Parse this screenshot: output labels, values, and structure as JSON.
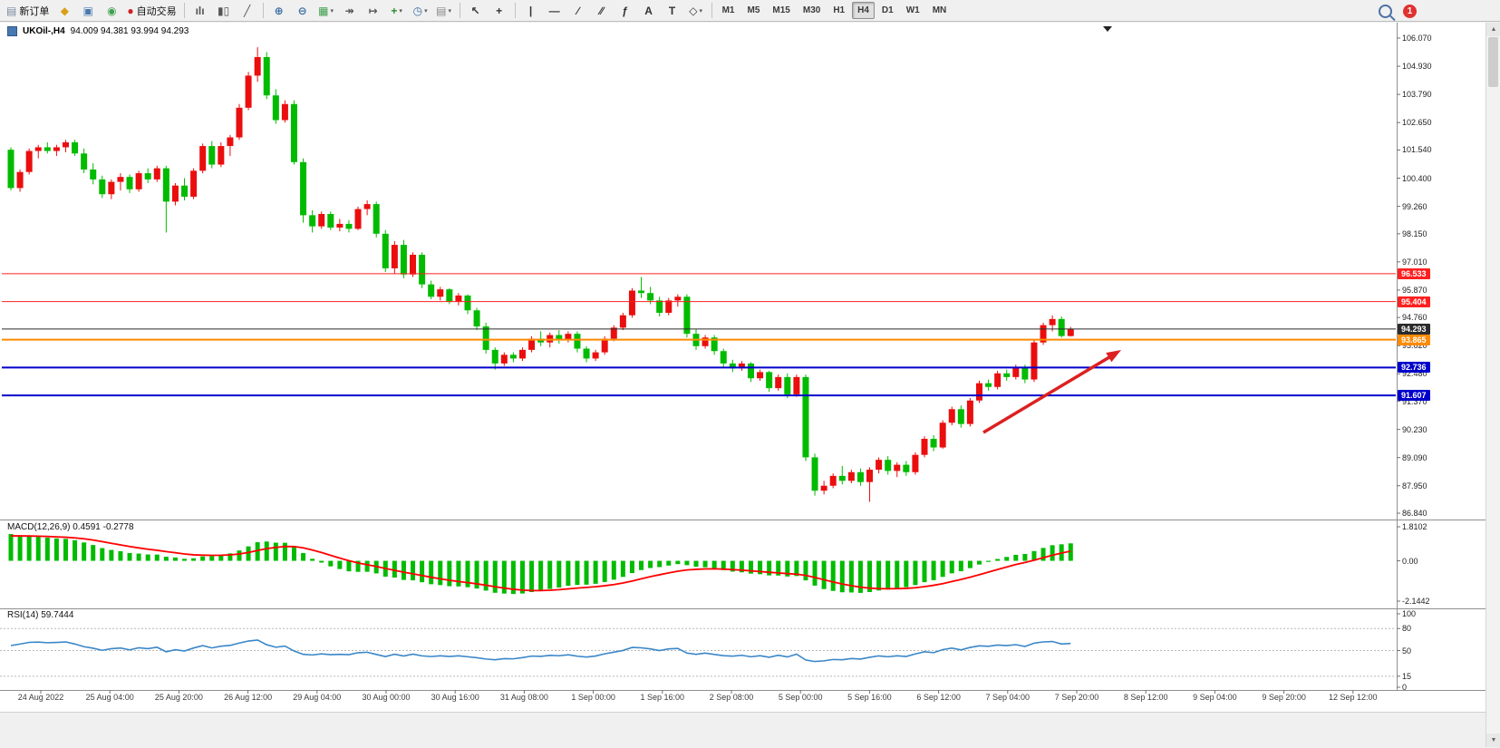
{
  "toolbar": {
    "items": [
      {
        "type": "button",
        "name": "new-order-button",
        "glyph": "▤",
        "glyph_color": "#7a8aa0",
        "label": "新订单"
      },
      {
        "type": "icon",
        "name": "market-watch-icon",
        "glyph": "◆",
        "glyph_color": "#d8a018"
      },
      {
        "type": "icon",
        "name": "navigator-icon",
        "glyph": "▣",
        "glyph_color": "#4878b0"
      },
      {
        "type": "icon",
        "name": "terminal-icon",
        "glyph": "◉",
        "glyph_color": "#3f9f4f"
      },
      {
        "type": "button",
        "name": "auto-trading-button",
        "glyph": "●",
        "glyph_color": "#cc2222",
        "label": "自动交易"
      },
      {
        "type": "sep"
      },
      {
        "type": "icon",
        "name": "bar-chart-icon",
        "glyph": "ılı",
        "glyph_color": "#555555"
      },
      {
        "type": "icon",
        "name": "candlestick-chart-icon",
        "glyph": "▮▯",
        "glyph_color": "#555555"
      },
      {
        "type": "icon",
        "name": "line-chart-icon",
        "glyph": "╱",
        "glyph_color": "#555555"
      },
      {
        "type": "sep"
      },
      {
        "type": "icon",
        "name": "zoom-in-icon",
        "glyph": "⊕",
        "glyph_color": "#3a6ea5"
      },
      {
        "type": "icon",
        "name": "zoom-out-icon",
        "glyph": "⊖",
        "glyph_color": "#3a6ea5"
      },
      {
        "type": "icon",
        "name": "new-chart-icon",
        "glyph": "▦",
        "glyph_color": "#3f9f4f",
        "caret": true
      },
      {
        "type": "icon",
        "name": "auto-scroll-icon",
        "glyph": "↠",
        "glyph_color": "#555555"
      },
      {
        "type": "icon",
        "name": "chart-shift-icon",
        "glyph": "↦",
        "glyph_color": "#555555"
      },
      {
        "type": "icon",
        "name": "indicators-icon",
        "glyph": "+",
        "glyph_color": "#2e8b2e",
        "caret": true
      },
      {
        "type": "icon",
        "name": "periods-icon",
        "glyph": "◷",
        "glyph_color": "#3a6ea5",
        "caret": true
      },
      {
        "type": "icon",
        "name": "templates-icon",
        "glyph": "▤",
        "glyph_color": "#888888",
        "caret": true
      },
      {
        "type": "sep"
      },
      {
        "type": "icon",
        "name": "cursor-icon",
        "glyph": "↖",
        "glyph_color": "#333333"
      },
      {
        "type": "icon",
        "name": "crosshair-icon",
        "glyph": "+",
        "glyph_color": "#333333"
      },
      {
        "type": "sep"
      },
      {
        "type": "icon",
        "name": "vertical-line-icon",
        "glyph": "|",
        "glyph_color": "#333333"
      },
      {
        "type": "icon",
        "name": "horizontal-line-icon",
        "glyph": "—",
        "glyph_color": "#333333"
      },
      {
        "type": "icon",
        "name": "trendline-icon",
        "glyph": "∕",
        "glyph_color": "#333333"
      },
      {
        "type": "icon",
        "name": "channel-icon",
        "glyph": "∕∕",
        "glyph_color": "#333333"
      },
      {
        "type": "icon",
        "name": "fibonacci-icon",
        "glyph": "ƒ",
        "glyph_color": "#333333"
      },
      {
        "type": "icon",
        "name": "text-icon",
        "glyph": "A",
        "glyph_color": "#333333"
      },
      {
        "type": "icon",
        "name": "text-label-icon",
        "glyph": "T",
        "glyph_color": "#333333"
      },
      {
        "type": "icon",
        "name": "arrow-tools-icon",
        "glyph": "◇",
        "glyph_color": "#333333",
        "caret": true
      },
      {
        "type": "sep"
      }
    ],
    "timeframes": [
      "M1",
      "M5",
      "M15",
      "M30",
      "H1",
      "H4",
      "D1",
      "W1",
      "MN"
    ],
    "active_timeframe": "H4",
    "notification_count": "1"
  },
  "chart": {
    "title_symbol": "UKOil-,H4",
    "title_ohlc": "94.009 94.381 93.994 94.293",
    "price_axis_labels": [
      "106.070",
      "104.930",
      "103.790",
      "102.650",
      "101.540",
      "100.400",
      "99.260",
      "98.150",
      "97.010",
      "95.870",
      "94.760",
      "93.620",
      "92.480",
      "91.370",
      "90.230",
      "89.090",
      "87.950",
      "86.840"
    ]
  },
  "indicators": {
    "macd": {
      "label": "MACD(12,26,9) 0.4591 -0.2778",
      "axis_labels": [
        "1.8102",
        "0.00",
        "-2.1442"
      ]
    },
    "rsi": {
      "label": "RSI(14) 59.7444",
      "axis_labels": [
        "100",
        "80",
        "50",
        "15",
        "0"
      ],
      "level_lines": [
        80,
        50,
        15
      ]
    }
  },
  "time_axis": [
    "24 Aug 2022",
    "25 Aug 04:00",
    "25 Aug 20:00",
    "26 Aug 12:00",
    "29 Aug 04:00",
    "30 Aug 00:00",
    "30 Aug 16:00",
    "31 Aug 08:00",
    "1 Sep 00:00",
    "1 Sep 16:00",
    "2 Sep 08:00",
    "5 Sep 00:00",
    "5 Sep 16:00",
    "6 Sep 12:00",
    "7 Sep 04:00",
    "7 Sep 20:00",
    "8 Sep 12:00",
    "9 Sep 04:00",
    "9 Sep 20:00",
    "12 Sep 12:00"
  ],
  "chart_data": {
    "type": "candlestick",
    "symbol": "UKOil-",
    "timeframe": "H4",
    "up_color": "#ea0e0e",
    "down_color": "#00bb00",
    "price_range": [
      86.84,
      106.07
    ],
    "macd_axis_range": [
      -2.1442,
      1.8102
    ],
    "rsi_axis_range": [
      0,
      100
    ],
    "horizontal_lines": [
      {
        "label": "96.533",
        "price": 96.533,
        "color": "#ff2020",
        "width": 1
      },
      {
        "label": "95.404",
        "price": 95.404,
        "color": "#ff2020",
        "width": 1
      },
      {
        "label": "94.293",
        "price": 94.293,
        "color": "#2b2b2b",
        "width": 1
      },
      {
        "label": "93.865",
        "price": 93.865,
        "color": "#ff8a00",
        "width": 2
      },
      {
        "label": "92.736",
        "price": 92.736,
        "color": "#0000cc",
        "width": 2
      },
      {
        "label": "91.607",
        "price": 91.607,
        "color": "#0000cc",
        "width": 2
      }
    ],
    "annotation_arrow": {
      "direction": "up-right",
      "color": "#dd2020"
    },
    "candles_ohlc": [
      [
        101.55,
        101.65,
        99.9,
        100.0
      ],
      [
        100.0,
        100.75,
        99.85,
        100.65
      ],
      [
        100.65,
        101.6,
        100.55,
        101.5
      ],
      [
        101.5,
        101.75,
        101.2,
        101.65
      ],
      [
        101.65,
        101.85,
        101.4,
        101.5
      ],
      [
        101.5,
        101.75,
        101.3,
        101.65
      ],
      [
        101.65,
        101.95,
        101.45,
        101.85
      ],
      [
        101.85,
        101.95,
        101.3,
        101.4
      ],
      [
        101.4,
        101.6,
        100.6,
        100.75
      ],
      [
        100.75,
        101.0,
        100.15,
        100.35
      ],
      [
        100.35,
        100.5,
        99.6,
        99.75
      ],
      [
        99.75,
        100.35,
        99.55,
        100.25
      ],
      [
        100.25,
        100.6,
        99.9,
        100.45
      ],
      [
        100.45,
        100.55,
        99.8,
        99.95
      ],
      [
        99.95,
        100.7,
        99.85,
        100.6
      ],
      [
        100.6,
        100.8,
        100.2,
        100.35
      ],
      [
        100.35,
        100.9,
        100.25,
        100.8
      ],
      [
        100.8,
        100.9,
        98.2,
        99.45
      ],
      [
        99.45,
        100.2,
        99.3,
        100.1
      ],
      [
        100.1,
        100.4,
        99.5,
        99.65
      ],
      [
        99.65,
        100.8,
        99.55,
        100.7
      ],
      [
        100.7,
        101.8,
        100.6,
        101.7
      ],
      [
        101.7,
        101.9,
        100.8,
        100.95
      ],
      [
        100.95,
        101.85,
        100.85,
        101.7
      ],
      [
        101.7,
        102.15,
        101.3,
        102.05
      ],
      [
        102.05,
        103.4,
        101.95,
        103.25
      ],
      [
        103.25,
        104.7,
        103.15,
        104.55
      ],
      [
        104.55,
        105.7,
        104.3,
        105.3
      ],
      [
        105.3,
        105.5,
        103.6,
        103.75
      ],
      [
        103.75,
        104.0,
        102.6,
        102.75
      ],
      [
        102.75,
        103.55,
        102.65,
        103.4
      ],
      [
        103.4,
        103.55,
        100.95,
        101.05
      ],
      [
        101.05,
        101.2,
        98.6,
        98.9
      ],
      [
        98.9,
        99.1,
        98.2,
        98.45
      ],
      [
        98.45,
        99.05,
        98.35,
        98.95
      ],
      [
        98.95,
        99.05,
        98.3,
        98.4
      ],
      [
        98.4,
        98.75,
        98.25,
        98.55
      ],
      [
        98.55,
        98.7,
        98.2,
        98.35
      ],
      [
        98.35,
        99.25,
        98.3,
        99.15
      ],
      [
        99.15,
        99.5,
        98.9,
        99.35
      ],
      [
        99.35,
        99.45,
        98.0,
        98.15
      ],
      [
        98.15,
        98.3,
        96.6,
        96.75
      ],
      [
        96.75,
        97.85,
        96.55,
        97.7
      ],
      [
        97.7,
        97.9,
        96.35,
        96.5
      ],
      [
        96.5,
        97.4,
        96.4,
        97.3
      ],
      [
        97.3,
        97.4,
        95.95,
        96.1
      ],
      [
        96.1,
        96.25,
        95.5,
        95.6
      ],
      [
        95.6,
        96.0,
        95.45,
        95.9
      ],
      [
        95.9,
        95.95,
        95.3,
        95.4
      ],
      [
        95.4,
        95.75,
        95.25,
        95.65
      ],
      [
        95.65,
        95.7,
        94.9,
        95.05
      ],
      [
        95.05,
        95.15,
        94.25,
        94.4
      ],
      [
        94.4,
        94.55,
        93.3,
        93.45
      ],
      [
        93.45,
        93.55,
        92.65,
        92.9
      ],
      [
        92.9,
        93.35,
        92.8,
        93.25
      ],
      [
        93.25,
        93.35,
        92.95,
        93.1
      ],
      [
        93.1,
        93.55,
        93.0,
        93.45
      ],
      [
        93.45,
        94.0,
        93.35,
        93.9
      ],
      [
        93.9,
        94.2,
        93.6,
        93.75
      ],
      [
        93.75,
        94.15,
        93.55,
        94.05
      ],
      [
        94.05,
        94.25,
        93.7,
        93.85
      ],
      [
        93.85,
        94.2,
        93.75,
        94.1
      ],
      [
        94.1,
        94.2,
        93.35,
        93.5
      ],
      [
        93.5,
        93.6,
        92.95,
        93.1
      ],
      [
        93.1,
        93.45,
        93.0,
        93.35
      ],
      [
        93.35,
        94.0,
        93.25,
        93.9
      ],
      [
        93.9,
        94.45,
        93.8,
        94.35
      ],
      [
        94.35,
        94.95,
        94.25,
        94.85
      ],
      [
        94.85,
        95.95,
        94.75,
        95.85
      ],
      [
        95.85,
        96.4,
        95.55,
        95.75
      ],
      [
        95.75,
        96.0,
        95.3,
        95.45
      ],
      [
        95.45,
        95.6,
        94.8,
        94.95
      ],
      [
        94.95,
        95.55,
        94.85,
        95.45
      ],
      [
        95.45,
        95.7,
        95.2,
        95.6
      ],
      [
        95.6,
        95.7,
        93.95,
        94.1
      ],
      [
        94.1,
        94.3,
        93.45,
        93.6
      ],
      [
        93.6,
        94.05,
        93.5,
        93.95
      ],
      [
        93.95,
        94.05,
        93.25,
        93.4
      ],
      [
        93.4,
        93.5,
        92.75,
        92.9
      ],
      [
        92.9,
        93.05,
        92.55,
        92.7
      ],
      [
        92.7,
        93.0,
        92.6,
        92.9
      ],
      [
        92.9,
        92.95,
        92.15,
        92.3
      ],
      [
        92.3,
        92.65,
        92.2,
        92.55
      ],
      [
        92.55,
        92.6,
        91.75,
        91.9
      ],
      [
        91.9,
        92.45,
        91.8,
        92.35
      ],
      [
        92.35,
        92.5,
        91.5,
        91.65
      ],
      [
        91.65,
        92.45,
        91.55,
        92.35
      ],
      [
        92.35,
        92.45,
        88.95,
        89.1
      ],
      [
        89.1,
        89.25,
        87.55,
        87.75
      ],
      [
        87.75,
        88.15,
        87.6,
        87.95
      ],
      [
        87.95,
        88.45,
        87.85,
        88.35
      ],
      [
        88.35,
        88.75,
        88.0,
        88.15
      ],
      [
        88.15,
        88.6,
        88.05,
        88.5
      ],
      [
        88.5,
        88.65,
        87.95,
        88.1
      ],
      [
        88.1,
        88.7,
        87.3,
        88.6
      ],
      [
        88.6,
        89.1,
        88.45,
        89.0
      ],
      [
        89.0,
        89.15,
        88.4,
        88.55
      ],
      [
        88.55,
        88.9,
        88.3,
        88.8
      ],
      [
        88.8,
        88.95,
        88.35,
        88.5
      ],
      [
        88.5,
        89.3,
        88.4,
        89.2
      ],
      [
        89.2,
        89.95,
        89.1,
        89.85
      ],
      [
        89.85,
        90.0,
        89.35,
        89.5
      ],
      [
        89.5,
        90.6,
        89.45,
        90.5
      ],
      [
        90.5,
        91.15,
        90.4,
        91.05
      ],
      [
        91.05,
        91.2,
        90.3,
        90.45
      ],
      [
        90.45,
        91.5,
        90.35,
        91.4
      ],
      [
        91.4,
        92.2,
        91.3,
        92.1
      ],
      [
        92.1,
        92.25,
        91.8,
        91.95
      ],
      [
        91.95,
        92.6,
        91.85,
        92.5
      ],
      [
        92.5,
        92.65,
        92.2,
        92.35
      ],
      [
        92.35,
        92.85,
        92.25,
        92.75
      ],
      [
        92.75,
        92.85,
        92.1,
        92.25
      ],
      [
        92.25,
        93.85,
        92.15,
        93.75
      ],
      [
        93.75,
        94.55,
        93.65,
        94.45
      ],
      [
        94.45,
        94.85,
        94.2,
        94.7
      ],
      [
        94.7,
        94.8,
        93.95,
        94.01
      ],
      [
        94.01,
        94.38,
        93.99,
        94.29
      ]
    ]
  }
}
